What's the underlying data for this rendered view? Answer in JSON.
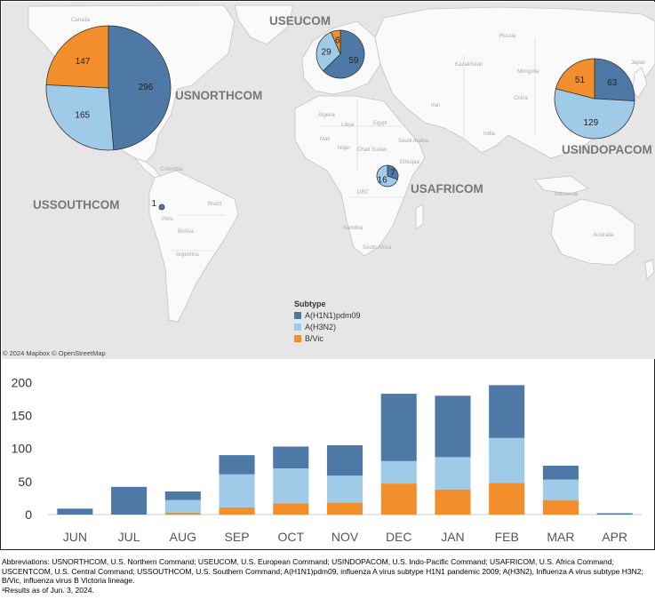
{
  "map": {
    "credit": "© 2024 Mapbox © OpenStreetMap",
    "country_labels": [
      "Canada",
      "Colombia",
      "Brazil",
      "Peru",
      "Bolivia",
      "Argentina",
      "Algeria",
      "Libya",
      "Egypt",
      "Mali",
      "Niger",
      "Chad",
      "Sudan",
      "Ethiopia",
      "DRC",
      "South Africa",
      "Namibia",
      "Iran",
      "Saudi Arabia",
      "India",
      "China",
      "Mongolia",
      "Russia",
      "Kazakhstan",
      "Japan",
      "Indonesia",
      "Australia"
    ],
    "commands": [
      {
        "name": "USNORTHCOM",
        "pie": {
          "A(H1N1)pdm09": 296,
          "A(H3N2)": 165,
          "B/Vic": 147
        }
      },
      {
        "name": "USEUCOM",
        "pie": {
          "A(H1N1)pdm09": 59,
          "A(H3N2)": 29,
          "B/Vic": 6
        }
      },
      {
        "name": "USINDOPACOM",
        "pie": {
          "A(H1N1)pdm09": 63,
          "A(H3N2)": 129,
          "B/Vic": 51
        }
      },
      {
        "name": "USAFRICOM",
        "pie": {
          "A(H1N1)pdm09": 7,
          "A(H3N2)": 16,
          "B/Vic": 0
        }
      },
      {
        "name": "USSOUTHCOM",
        "pie": {
          "A(H1N1)pdm09": 1,
          "A(H3N2)": 0,
          "B/Vic": 0
        }
      }
    ],
    "legend": {
      "title": "Subtype",
      "items": [
        {
          "label": "A(H1N1)pdm09",
          "color": "#4e79a7"
        },
        {
          "label": "A(H3N2)",
          "color": "#a0cbe8"
        },
        {
          "label": "B/Vic",
          "color": "#f28e2b"
        }
      ]
    }
  },
  "chart_data": {
    "type": "bar",
    "stacked": true,
    "categories": [
      "JUN",
      "JUL",
      "AUG",
      "SEP",
      "OCT",
      "NOV",
      "DEC",
      "JAN",
      "FEB",
      "MAR",
      "APR"
    ],
    "series": [
      {
        "name": "B/Vic",
        "color": "#f28e2b",
        "values": [
          0,
          0,
          3,
          11,
          17,
          18,
          47,
          38,
          48,
          22,
          0
        ]
      },
      {
        "name": "A(H3N2)",
        "color": "#a0cbe8",
        "values": [
          0,
          0,
          19,
          50,
          53,
          41,
          34,
          49,
          68,
          31,
          0
        ]
      },
      {
        "name": "A(H1N1)pdm09",
        "color": "#4e79a7",
        "values": [
          9,
          42,
          13,
          29,
          33,
          46,
          102,
          93,
          80,
          21,
          2
        ]
      }
    ],
    "yticks": [
      0,
      50,
      100,
      150,
      200
    ],
    "ylim": [
      0,
      210
    ],
    "grid": false
  },
  "footnote": {
    "abbreviations": "Abbreviations: USNORTHCOM, U.S. Northern Command; USEUCOM, U.S. European Command; USINDOPACOM, U.S. Indo-Pacific Command; USAFRICOM, U.S. Africa Command; USCENTCOM, U.S. Central Command; USSOUTHCOM, U.S. Southern Command; A(H1N1)pdm09, influenza A virus subtype H1N1 pandemic 2009; A(H3N2), Influenza A virus subtype H3N2; B/Vic, influenza virus B Victoria lineage.",
    "results": "ᵃResults as of Jun. 3, 2024."
  }
}
